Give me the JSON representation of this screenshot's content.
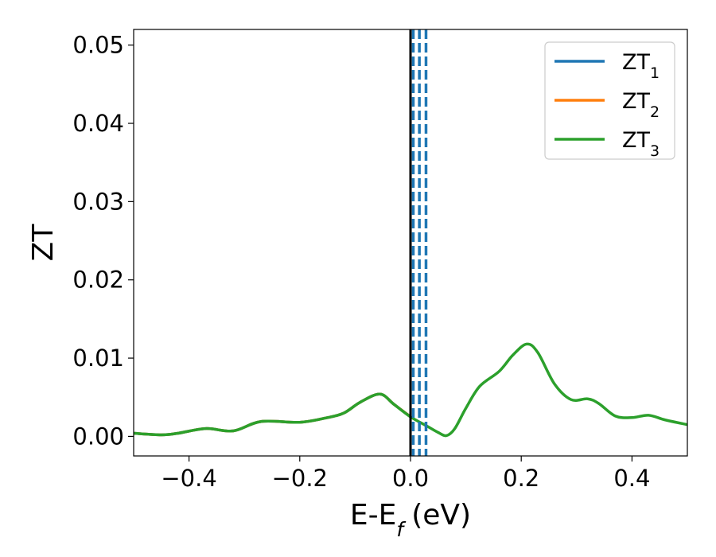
{
  "chart_data": {
    "type": "line",
    "title": "",
    "xlabel": "E-E",
    "xlabel_sub": "f",
    "xlabel_unit": "(eV)",
    "ylabel": "ZT",
    "xlim": [
      -0.5,
      0.5
    ],
    "ylim": [
      -0.0025,
      0.052
    ],
    "xticks": [
      -0.4,
      -0.2,
      0.0,
      0.2,
      0.4
    ],
    "xtick_labels": [
      "−0.4",
      "−0.2",
      "0.0",
      "0.2",
      "0.4"
    ],
    "yticks": [
      0.0,
      0.01,
      0.02,
      0.03,
      0.04,
      0.05
    ],
    "ytick_labels": [
      "0.00",
      "0.01",
      "0.02",
      "0.03",
      "0.04",
      "0.05"
    ],
    "grid": false,
    "legend_position": "top-right",
    "series": [
      {
        "name": "ZT",
        "name_sub": "1",
        "color": "#1f77b4",
        "x": [
          -0.5,
          -0.45,
          -0.42,
          -0.37,
          -0.32,
          -0.27,
          -0.2,
          -0.15,
          -0.12,
          -0.09,
          -0.055,
          -0.03,
          0.0
        ],
        "y": [
          0.0004,
          0.0002,
          0.0004,
          0.001,
          0.0007,
          0.0019,
          0.0018,
          0.0024,
          0.003,
          0.0044,
          0.0054,
          0.0041,
          0.0025
        ]
      },
      {
        "name": "ZT",
        "name_sub": "2",
        "color": "#ff7f0e",
        "x": [
          -0.5,
          -0.45,
          -0.42,
          -0.37,
          -0.32,
          -0.27,
          -0.2,
          -0.15,
          -0.12,
          -0.09,
          -0.055,
          -0.03,
          0.0
        ],
        "y": [
          0.0004,
          0.0002,
          0.0004,
          0.001,
          0.0007,
          0.0019,
          0.0018,
          0.0024,
          0.003,
          0.0044,
          0.0054,
          0.0041,
          0.0025
        ]
      },
      {
        "name": "ZT",
        "name_sub": "3",
        "color": "#2ca02c",
        "x": [
          -0.5,
          -0.45,
          -0.42,
          -0.37,
          -0.32,
          -0.27,
          -0.2,
          -0.15,
          -0.12,
          -0.09,
          -0.055,
          -0.03,
          0.0,
          0.03,
          0.05,
          0.065,
          0.08,
          0.1,
          0.125,
          0.16,
          0.185,
          0.21,
          0.23,
          0.26,
          0.29,
          0.32,
          0.34,
          0.37,
          0.4,
          0.43,
          0.46,
          0.5
        ],
        "y": [
          0.0004,
          0.0002,
          0.0004,
          0.001,
          0.0007,
          0.0019,
          0.0018,
          0.0024,
          0.003,
          0.0044,
          0.0054,
          0.0041,
          0.0025,
          0.0013,
          0.0005,
          0.0001,
          0.001,
          0.0036,
          0.0064,
          0.0083,
          0.0104,
          0.0118,
          0.0107,
          0.0067,
          0.0047,
          0.0048,
          0.0042,
          0.0026,
          0.0024,
          0.0027,
          0.0021,
          0.0015
        ]
      }
    ],
    "vertical_lines": [
      {
        "x": 0.0,
        "color": "#000000",
        "style": "solid"
      },
      {
        "x": 0.005,
        "color": "#1f77b4",
        "style": "dashed"
      },
      {
        "x": 0.016,
        "color": "#1f77b4",
        "style": "dashed"
      },
      {
        "x": 0.028,
        "color": "#1f77b4",
        "style": "dashed"
      }
    ]
  }
}
